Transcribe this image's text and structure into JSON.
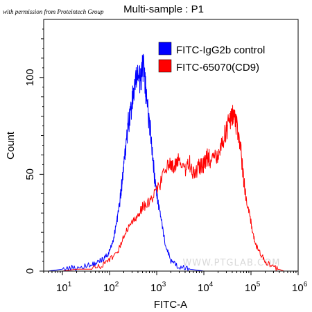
{
  "permission_note": "with permission from Proteintech Group",
  "watermark": "WWW.PTGLAB.COM",
  "chart_data": {
    "type": "line",
    "title": "Multi-sample : P1",
    "xlabel": "FITC-A",
    "ylabel": "Count",
    "x_scale": "log",
    "xlim": [
      4,
      1000000
    ],
    "ylim": [
      0,
      130
    ],
    "x_ticks": [
      {
        "value": 10,
        "label": "10",
        "exp": "1"
      },
      {
        "value": 100,
        "label": "10",
        "exp": "2"
      },
      {
        "value": 1000,
        "label": "10",
        "exp": "3"
      },
      {
        "value": 10000,
        "label": "10",
        "exp": "4"
      },
      {
        "value": 100000,
        "label": "10",
        "exp": "5"
      },
      {
        "value": 1000000,
        "label": "10",
        "exp": "6"
      }
    ],
    "y_ticks": [
      0,
      50,
      100
    ],
    "legend_position": "top-right",
    "grid": false,
    "series": [
      {
        "name": "FITC-IgG2b control",
        "color": "#0000ff",
        "x": [
          5,
          10,
          20,
          40,
          60,
          80,
          100,
          120,
          140,
          160,
          180,
          200,
          220,
          250,
          280,
          320,
          360,
          400,
          450,
          500,
          550,
          600,
          700,
          800,
          900,
          1000,
          1200,
          1500,
          2000,
          3000,
          5000,
          10000
        ],
        "y": [
          0,
          1,
          2,
          3,
          5,
          7,
          10,
          16,
          25,
          33,
          44,
          54,
          63,
          76,
          82,
          91,
          97,
          103,
          96,
          108,
          100,
          90,
          77,
          64,
          48,
          40,
          28,
          15,
          5,
          2,
          1,
          0
        ]
      },
      {
        "name": "FITC-65070(CD9)",
        "color": "#ff0000",
        "x": [
          10,
          20,
          40,
          70,
          100,
          150,
          200,
          300,
          400,
          500,
          700,
          1000,
          1500,
          2000,
          2500,
          3000,
          4000,
          5000,
          6000,
          8000,
          10000,
          12000,
          15000,
          20000,
          25000,
          30000,
          35000,
          40000,
          45000,
          50000,
          60000,
          70000,
          80000,
          100000,
          120000,
          150000,
          200000,
          300000,
          500000
        ],
        "y": [
          0,
          1,
          1,
          3,
          6,
          10,
          18,
          26,
          29,
          33,
          36,
          41,
          52,
          55,
          54,
          58,
          52,
          56,
          50,
          54,
          55,
          59,
          57,
          61,
          67,
          72,
          78,
          80,
          82,
          74,
          64,
          47,
          37,
          25,
          15,
          10,
          5,
          2,
          0
        ]
      }
    ]
  }
}
